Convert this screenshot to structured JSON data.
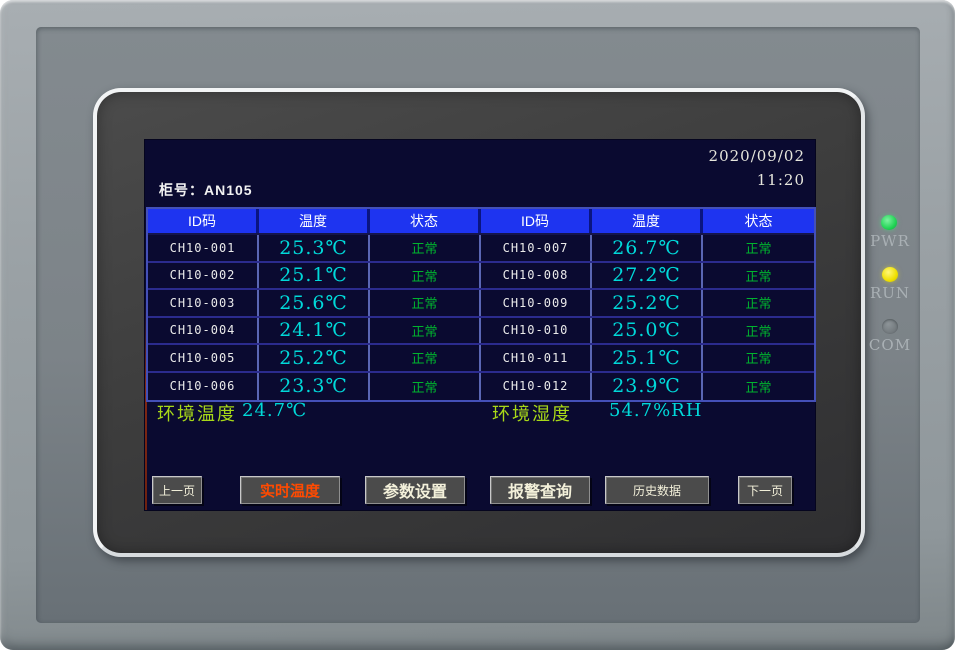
{
  "device": {
    "leds": [
      {
        "name": "power",
        "label": "PWR",
        "color": "#22d455",
        "lit": true
      },
      {
        "name": "run",
        "label": "RUN",
        "color": "#efe000",
        "lit": true
      },
      {
        "name": "com",
        "label": "COM",
        "color": "#757c80",
        "lit": false
      }
    ]
  },
  "screen": {
    "datetime": {
      "date": "2020/09/02",
      "time": "11:20"
    },
    "cabinet_label": "柜号：AN105",
    "table": {
      "headers": [
        "ID码",
        "温度",
        "状态",
        "ID码",
        "温度",
        "状态"
      ],
      "rows": [
        [
          "CH10-001",
          "25.3℃",
          "正常",
          "CH10-007",
          "26.7℃",
          "正常"
        ],
        [
          "CH10-002",
          "25.1℃",
          "正常",
          "CH10-008",
          "27.2℃",
          "正常"
        ],
        [
          "CH10-003",
          "25.6℃",
          "正常",
          "CH10-009",
          "25.2℃",
          "正常"
        ],
        [
          "CH10-004",
          "24.1℃",
          "正常",
          "CH10-010",
          "25.0℃",
          "正常"
        ],
        [
          "CH10-005",
          "25.2℃",
          "正常",
          "CH10-011",
          "25.1℃",
          "正常"
        ],
        [
          "CH10-006",
          "23.3℃",
          "正常",
          "CH10-012",
          "23.9℃",
          "正常"
        ]
      ]
    },
    "ambient": {
      "temp_label": "环境温度",
      "temp_value": "24.7℃",
      "hum_label": "环境湿度",
      "hum_value": "54.7%RH"
    },
    "buttons": [
      {
        "label": "上一页",
        "active": false
      },
      {
        "label": "实时温度",
        "active": true
      },
      {
        "label": "参数设置",
        "active": false
      },
      {
        "label": "报警查询",
        "active": false
      },
      {
        "label": "历史数据",
        "active": false
      },
      {
        "label": "下一页",
        "active": false
      }
    ],
    "colors": {
      "screen_bg": "#0a0a30",
      "table_header_bg": "#1e34f0",
      "temp_value": "#00d9d9",
      "status_ok": "#00b32e",
      "ambient_label": "#a8d818",
      "active_button_text": "#ff4a00"
    }
  }
}
